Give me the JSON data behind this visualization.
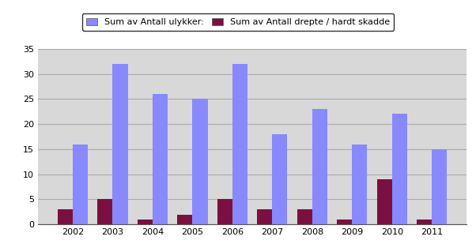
{
  "years": [
    2002,
    2003,
    2004,
    2005,
    2006,
    2007,
    2008,
    2009,
    2010,
    2011
  ],
  "ulykker": [
    16,
    32,
    26,
    25,
    32,
    18,
    23,
    16,
    22,
    15
  ],
  "drepte": [
    3,
    5,
    1,
    2,
    5,
    3,
    3,
    1,
    9,
    1
  ],
  "color_ulykker": "#8888ff",
  "color_drepte": "#7b1040",
  "ylim": [
    0,
    35
  ],
  "yticks": [
    0,
    5,
    10,
    15,
    20,
    25,
    30,
    35
  ],
  "legend_ulykker": "Sum av Antall ulykker:",
  "legend_drepte": "Sum av Antall drepte / hardt skadde",
  "plot_bg_color": "#d8d8d8",
  "fig_bg_color": "#ffffff",
  "bar_width": 0.38,
  "legend_box_color": "#ffffff",
  "legend_border_color": "#000000",
  "grid_color": "#aaaaaa",
  "spine_color": "#555555"
}
